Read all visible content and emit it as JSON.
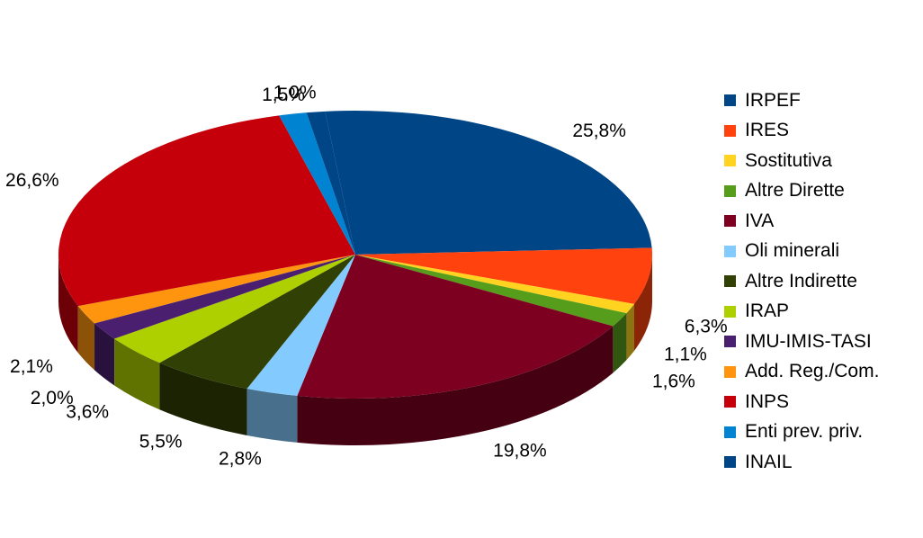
{
  "chart_data": {
    "type": "pie",
    "style": "3d",
    "title": "",
    "legend_position": "right",
    "slices": [
      {
        "label": "IRPEF",
        "value": 25.8,
        "value_label": "25,8%",
        "color": "#004586"
      },
      {
        "label": "IRES",
        "value": 6.3,
        "value_label": "6,3%",
        "color": "#ff420e"
      },
      {
        "label": "Sostitutiva",
        "value": 1.1,
        "value_label": "1,1%",
        "color": "#ffd320"
      },
      {
        "label": "Altre Dirette",
        "value": 1.6,
        "value_label": "1,6%",
        "color": "#579d1c"
      },
      {
        "label": "IVA",
        "value": 19.8,
        "value_label": "19,8%",
        "color": "#7e0021"
      },
      {
        "label": "Oli minerali",
        "value": 2.8,
        "value_label": "2,8%",
        "color": "#83caff"
      },
      {
        "label": "Altre Indirette",
        "value": 5.5,
        "value_label": "5,5%",
        "color": "#314004"
      },
      {
        "label": "IRAP",
        "value": 3.6,
        "value_label": "3,6%",
        "color": "#aecf00"
      },
      {
        "label": "IMU-IMIS-TASI",
        "value": 2.0,
        "value_label": "2,0%",
        "color": "#4b1f6f"
      },
      {
        "label": "Add. Reg./Com.",
        "value": 2.1,
        "value_label": "2,1%",
        "color": "#ff950e"
      },
      {
        "label": "INPS",
        "value": 26.6,
        "value_label": "26,6%",
        "color": "#c5000b"
      },
      {
        "label": "Enti prev. priv.",
        "value": 1.5,
        "value_label": "1,5%",
        "color": "#0084d1"
      },
      {
        "label": "INAIL",
        "value": 1.0,
        "value_label": "1,0%",
        "color": "#004586"
      }
    ]
  }
}
